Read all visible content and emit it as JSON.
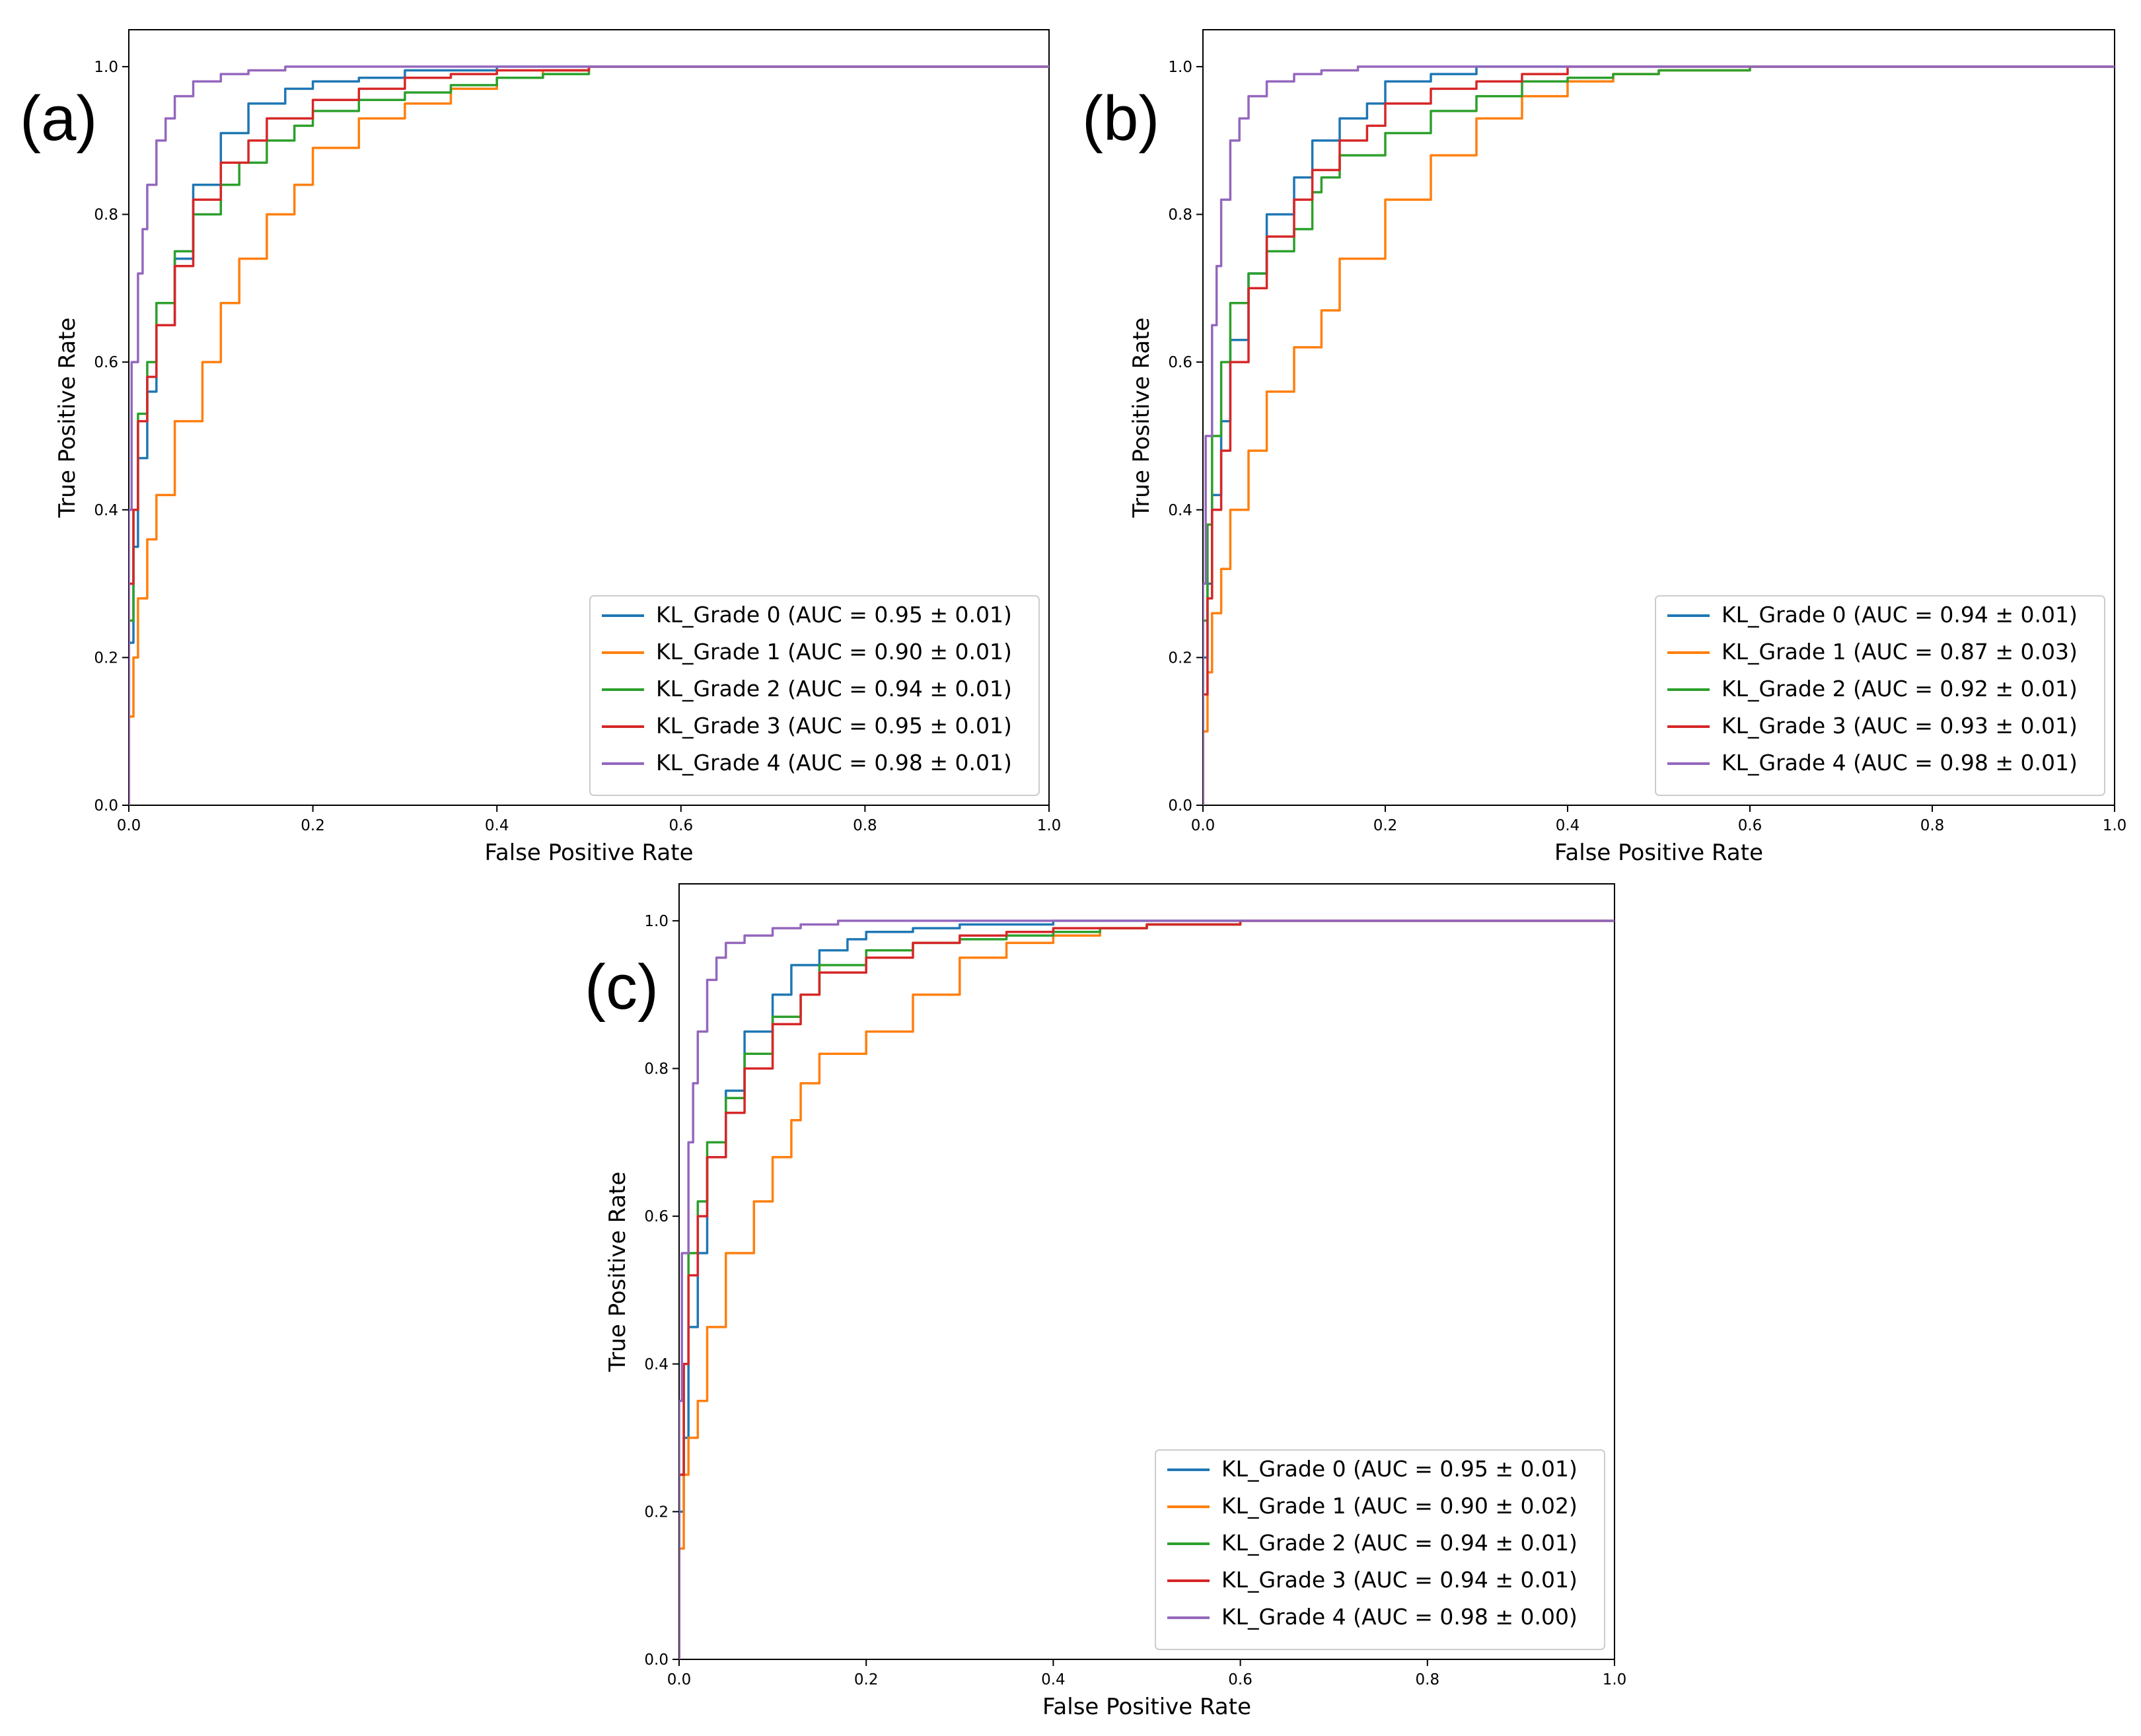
{
  "chart_data": [
    {
      "panel": "(a)",
      "type": "line",
      "xlabel": "False Positive Rate",
      "ylabel": "True Positive Rate",
      "xlim": [
        0.0,
        1.0
      ],
      "ylim": [
        0.0,
        1.05
      ],
      "xticks": [
        "0.0",
        "0.2",
        "0.4",
        "0.6",
        "0.8",
        "1.0"
      ],
      "yticks": [
        "0.0",
        "0.2",
        "0.4",
        "0.6",
        "0.8",
        "1.0"
      ],
      "legend_position": "lower-right",
      "series": [
        {
          "name": "KL_Grade 0 (AUC = 0.95 ± 0.01)",
          "color": "#1f77b4",
          "x": [
            0,
            0.005,
            0.01,
            0.02,
            0.03,
            0.05,
            0.07,
            0.1,
            0.13,
            0.17,
            0.2,
            0.25,
            0.3,
            0.4,
            0.5,
            0.6,
            1.0
          ],
          "y": [
            0,
            0.22,
            0.35,
            0.47,
            0.56,
            0.65,
            0.74,
            0.84,
            0.91,
            0.95,
            0.97,
            0.98,
            0.985,
            0.995,
            1.0,
            1.0,
            1.0
          ]
        },
        {
          "name": "KL_Grade 1 (AUC = 0.90 ± 0.01)",
          "color": "#ff7f0e",
          "x": [
            0,
            0.005,
            0.01,
            0.02,
            0.03,
            0.05,
            0.08,
            0.1,
            0.12,
            0.15,
            0.18,
            0.2,
            0.25,
            0.3,
            0.35,
            0.4,
            0.45,
            0.5,
            0.6,
            1.0
          ],
          "y": [
            0,
            0.12,
            0.2,
            0.28,
            0.36,
            0.42,
            0.52,
            0.6,
            0.68,
            0.74,
            0.8,
            0.84,
            0.89,
            0.93,
            0.95,
            0.97,
            0.985,
            0.995,
            1.0,
            1.0
          ]
        },
        {
          "name": "KL_Grade 2 (AUC = 0.94 ± 0.01)",
          "color": "#2ca02c",
          "x": [
            0,
            0.005,
            0.01,
            0.02,
            0.03,
            0.05,
            0.07,
            0.1,
            0.12,
            0.15,
            0.18,
            0.2,
            0.25,
            0.3,
            0.35,
            0.4,
            0.45,
            0.5,
            0.57,
            1.0
          ],
          "y": [
            0,
            0.25,
            0.4,
            0.53,
            0.6,
            0.68,
            0.75,
            0.8,
            0.84,
            0.87,
            0.9,
            0.92,
            0.94,
            0.955,
            0.965,
            0.975,
            0.985,
            0.99,
            1.0,
            1.0
          ]
        },
        {
          "name": "KL_Grade 3 (AUC = 0.95 ± 0.01)",
          "color": "#d62728",
          "x": [
            0,
            0.005,
            0.01,
            0.02,
            0.03,
            0.05,
            0.07,
            0.1,
            0.13,
            0.15,
            0.2,
            0.25,
            0.3,
            0.35,
            0.4,
            0.5,
            0.57,
            1.0
          ],
          "y": [
            0,
            0.3,
            0.4,
            0.52,
            0.58,
            0.65,
            0.73,
            0.82,
            0.87,
            0.9,
            0.93,
            0.955,
            0.97,
            0.985,
            0.99,
            0.995,
            1.0,
            1.0
          ]
        },
        {
          "name": "KL_Grade 4 (AUC = 0.98 ± 0.01)",
          "color": "#9467bd",
          "x": [
            0,
            0.003,
            0.01,
            0.015,
            0.02,
            0.03,
            0.04,
            0.05,
            0.07,
            0.1,
            0.13,
            0.17,
            0.2,
            0.3,
            1.0
          ],
          "y": [
            0,
            0.4,
            0.6,
            0.72,
            0.78,
            0.84,
            0.9,
            0.93,
            0.96,
            0.98,
            0.99,
            0.995,
            1.0,
            1.0,
            1.0
          ]
        }
      ]
    },
    {
      "panel": "(b)",
      "type": "line",
      "xlabel": "False Positive Rate",
      "ylabel": "True Positive Rate",
      "xlim": [
        0.0,
        1.0
      ],
      "ylim": [
        0.0,
        1.05
      ],
      "xticks": [
        "0.0",
        "0.2",
        "0.4",
        "0.6",
        "0.8",
        "1.0"
      ],
      "yticks": [
        "0.0",
        "0.2",
        "0.4",
        "0.6",
        "0.8",
        "1.0"
      ],
      "legend_position": "lower-right",
      "series": [
        {
          "name": "KL_Grade 0 (AUC = 0.94 ± 0.01)",
          "color": "#1f77b4",
          "x": [
            0,
            0.005,
            0.01,
            0.02,
            0.03,
            0.05,
            0.07,
            0.1,
            0.12,
            0.15,
            0.18,
            0.2,
            0.25,
            0.3,
            0.4,
            0.5,
            1.0
          ],
          "y": [
            0,
            0.2,
            0.3,
            0.42,
            0.52,
            0.63,
            0.72,
            0.8,
            0.85,
            0.9,
            0.93,
            0.95,
            0.98,
            0.99,
            1.0,
            1.0,
            1.0
          ]
        },
        {
          "name": "KL_Grade 1 (AUC = 0.87 ± 0.03)",
          "color": "#ff7f0e",
          "x": [
            0,
            0.005,
            0.01,
            0.02,
            0.03,
            0.05,
            0.07,
            0.1,
            0.13,
            0.15,
            0.2,
            0.25,
            0.3,
            0.35,
            0.4,
            0.45,
            0.5,
            0.6,
            0.93,
            1.0
          ],
          "y": [
            0,
            0.1,
            0.18,
            0.26,
            0.32,
            0.4,
            0.48,
            0.56,
            0.62,
            0.67,
            0.74,
            0.82,
            0.88,
            0.93,
            0.96,
            0.98,
            0.99,
            0.995,
            1.0,
            1.0
          ]
        },
        {
          "name": "KL_Grade 2 (AUC = 0.92 ± 0.01)",
          "color": "#2ca02c",
          "x": [
            0,
            0.005,
            0.01,
            0.02,
            0.03,
            0.05,
            0.07,
            0.1,
            0.12,
            0.13,
            0.15,
            0.2,
            0.25,
            0.3,
            0.35,
            0.4,
            0.45,
            0.5,
            0.6,
            1.0
          ],
          "y": [
            0,
            0.25,
            0.38,
            0.5,
            0.6,
            0.68,
            0.72,
            0.75,
            0.78,
            0.83,
            0.85,
            0.88,
            0.91,
            0.94,
            0.96,
            0.98,
            0.985,
            0.99,
            0.995,
            1.0
          ]
        },
        {
          "name": "KL_Grade 3 (AUC = 0.93 ± 0.01)",
          "color": "#d62728",
          "x": [
            0,
            0.005,
            0.01,
            0.02,
            0.03,
            0.05,
            0.07,
            0.1,
            0.12,
            0.15,
            0.18,
            0.2,
            0.25,
            0.3,
            0.35,
            0.4,
            0.5,
            1.0
          ],
          "y": [
            0,
            0.15,
            0.28,
            0.4,
            0.48,
            0.6,
            0.7,
            0.77,
            0.82,
            0.86,
            0.9,
            0.92,
            0.95,
            0.97,
            0.98,
            0.99,
            1.0,
            1.0
          ]
        },
        {
          "name": "KL_Grade 4 (AUC = 0.98 ± 0.01)",
          "color": "#9467bd",
          "x": [
            0,
            0.003,
            0.01,
            0.015,
            0.02,
            0.03,
            0.04,
            0.05,
            0.07,
            0.1,
            0.13,
            0.17,
            0.2,
            0.3,
            1.0
          ],
          "y": [
            0,
            0.3,
            0.5,
            0.65,
            0.73,
            0.82,
            0.9,
            0.93,
            0.96,
            0.98,
            0.99,
            0.995,
            1.0,
            1.0,
            1.0
          ]
        }
      ]
    },
    {
      "panel": "(c)",
      "type": "line",
      "xlabel": "False Positive Rate",
      "ylabel": "True Positive Rate",
      "xlim": [
        0.0,
        1.0
      ],
      "ylim": [
        0.0,
        1.05
      ],
      "xticks": [
        "0.0",
        "0.2",
        "0.4",
        "0.6",
        "0.8",
        "1.0"
      ],
      "yticks": [
        "0.0",
        "0.2",
        "0.4",
        "0.6",
        "0.8",
        "1.0"
      ],
      "legend_position": "lower-right",
      "series": [
        {
          "name": "KL_Grade 0 (AUC = 0.95 ± 0.01)",
          "color": "#1f77b4",
          "x": [
            0,
            0.005,
            0.01,
            0.02,
            0.03,
            0.05,
            0.07,
            0.1,
            0.12,
            0.15,
            0.18,
            0.2,
            0.25,
            0.3,
            0.4,
            0.5,
            1.0
          ],
          "y": [
            0,
            0.2,
            0.3,
            0.45,
            0.55,
            0.68,
            0.77,
            0.85,
            0.9,
            0.94,
            0.96,
            0.975,
            0.985,
            0.99,
            0.995,
            1.0,
            1.0
          ]
        },
        {
          "name": "KL_Grade 1 (AUC = 0.90 ± 0.02)",
          "color": "#ff7f0e",
          "x": [
            0,
            0.005,
            0.01,
            0.02,
            0.03,
            0.05,
            0.08,
            0.1,
            0.12,
            0.13,
            0.15,
            0.2,
            0.25,
            0.3,
            0.35,
            0.4,
            0.45,
            0.5,
            0.6,
            1.0
          ],
          "y": [
            0,
            0.15,
            0.25,
            0.3,
            0.35,
            0.45,
            0.55,
            0.62,
            0.68,
            0.73,
            0.78,
            0.82,
            0.85,
            0.9,
            0.95,
            0.97,
            0.98,
            0.99,
            0.995,
            1.0
          ]
        },
        {
          "name": "KL_Grade 2 (AUC = 0.94 ± 0.01)",
          "color": "#2ca02c",
          "x": [
            0,
            0.005,
            0.01,
            0.02,
            0.03,
            0.05,
            0.07,
            0.1,
            0.13,
            0.15,
            0.2,
            0.25,
            0.3,
            0.35,
            0.4,
            0.45,
            0.5,
            0.6,
            0.67,
            1.0
          ],
          "y": [
            0,
            0.25,
            0.4,
            0.55,
            0.62,
            0.7,
            0.76,
            0.82,
            0.87,
            0.9,
            0.94,
            0.96,
            0.97,
            0.975,
            0.98,
            0.985,
            0.99,
            0.995,
            1.0,
            1.0
          ]
        },
        {
          "name": "KL_Grade 3 (AUC = 0.94 ± 0.01)",
          "color": "#d62728",
          "x": [
            0,
            0.005,
            0.01,
            0.02,
            0.03,
            0.05,
            0.07,
            0.1,
            0.13,
            0.15,
            0.2,
            0.25,
            0.3,
            0.35,
            0.4,
            0.5,
            0.6,
            0.9,
            1.0
          ],
          "y": [
            0,
            0.25,
            0.4,
            0.52,
            0.6,
            0.68,
            0.74,
            0.8,
            0.86,
            0.9,
            0.93,
            0.95,
            0.97,
            0.98,
            0.985,
            0.99,
            0.995,
            1.0,
            1.0
          ]
        },
        {
          "name": "KL_Grade 4 (AUC = 0.98 ± 0.00)",
          "color": "#9467bd",
          "x": [
            0,
            0.003,
            0.01,
            0.015,
            0.02,
            0.03,
            0.04,
            0.05,
            0.07,
            0.1,
            0.13,
            0.17,
            0.2,
            0.3,
            1.0
          ],
          "y": [
            0,
            0.35,
            0.55,
            0.7,
            0.78,
            0.85,
            0.92,
            0.95,
            0.97,
            0.98,
            0.99,
            0.995,
            1.0,
            1.0,
            1.0
          ]
        }
      ]
    }
  ]
}
